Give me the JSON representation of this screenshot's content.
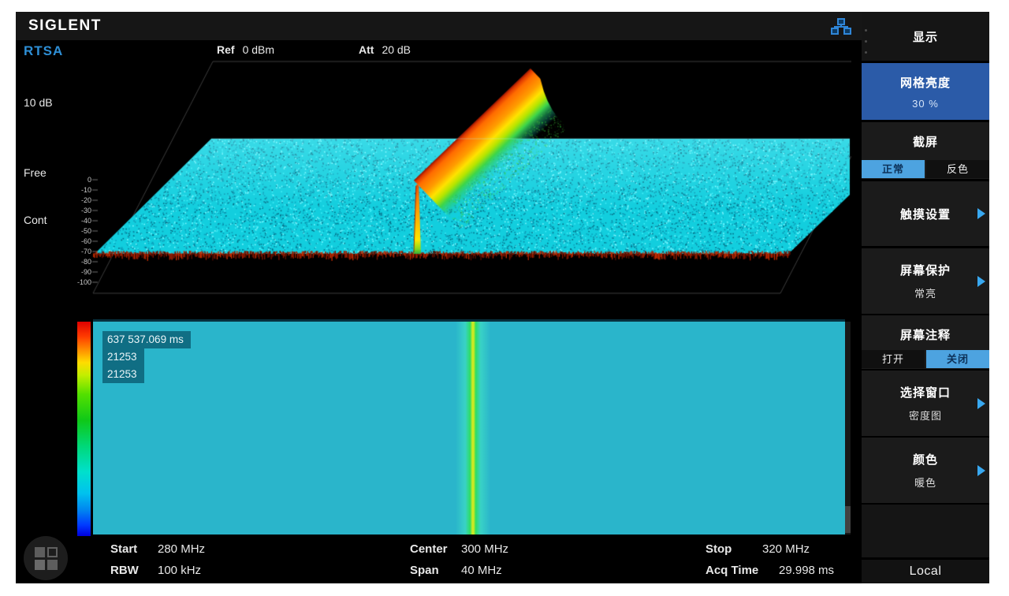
{
  "brand": {
    "logo": "SIGLENT",
    "mode": "RTSA"
  },
  "header": {
    "ref_label": "Ref",
    "ref_value": "0 dBm",
    "att_label": "Att",
    "att_value": "20 dB"
  },
  "left_panel": {
    "scale": "10 dB",
    "trigger": "Free",
    "sweep": "Cont"
  },
  "waterfall": {
    "y_ticks": [
      "0",
      "-10",
      "-20",
      "-30",
      "-40",
      "-50",
      "-60",
      "-70",
      "-80",
      "-90",
      "-100"
    ],
    "signal": {
      "center": "300 MHz",
      "peak_level_dbm": 0,
      "noise_floor_dbm": -70
    }
  },
  "spectrogram": {
    "annotation": {
      "time": "637 537.069 ms",
      "count1": "21253",
      "count2": "21253"
    }
  },
  "footer": {
    "rows": [
      [
        {
          "l": "Start",
          "v": "280 MHz"
        },
        {
          "l": "Center",
          "v": "300 MHz"
        },
        {
          "l": "Stop",
          "v": "320 MHz"
        }
      ],
      [
        {
          "l": "RBW",
          "v": "100 kHz"
        },
        {
          "l": "Span",
          "v": "40 MHz"
        },
        {
          "l": "Acq Time",
          "v": "29.998 ms"
        }
      ]
    ]
  },
  "sidebar": {
    "title": "显示",
    "items": [
      {
        "label": "网格亮度",
        "value": "30 %",
        "active": true
      },
      {
        "label": "截屏",
        "options": [
          "正常",
          "反色"
        ],
        "selected": "正常"
      },
      {
        "label": "触摸设置"
      },
      {
        "label": "屏幕保护",
        "value": "常亮"
      },
      {
        "label": "屏幕注释",
        "options": [
          "打开",
          "关闭"
        ],
        "selected": "关闭"
      },
      {
        "label": "选择窗口",
        "value": "密度图"
      },
      {
        "label": "颜色",
        "value": "暖色"
      }
    ],
    "local": "Local"
  },
  "colors": {
    "active_button": "#2b5ba8",
    "toggle_active": "#4da3e0",
    "submenu_arrow": "#38a8f0",
    "rtsa_label": "#2e8fd6",
    "spectrogram_bg": "#2ab5cb",
    "signal_core": "#dcec1e"
  }
}
